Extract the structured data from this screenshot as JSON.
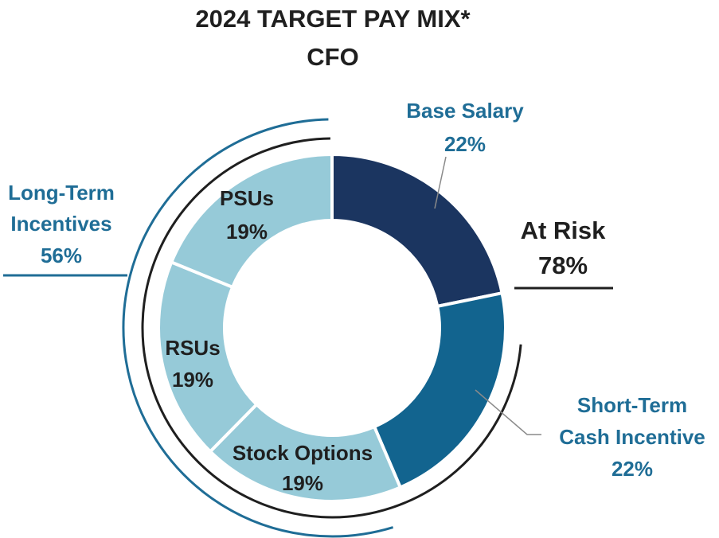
{
  "chart_data": {
    "type": "pie",
    "variant": "donut",
    "title": "2024 TARGET PAY MIX*",
    "subtitle": "CFO",
    "slices": [
      {
        "name": "Base Salary",
        "value": 22,
        "label": "22%",
        "color": "#1b3560"
      },
      {
        "name": "Short-Term Cash Incentive",
        "value": 22,
        "label": "22%",
        "color": "#12648f"
      },
      {
        "name": "Stock Options",
        "value": 19,
        "label": "19%",
        "color": "#96cad8"
      },
      {
        "name": "RSUs",
        "value": 19,
        "label": "19%",
        "color": "#96cad8"
      },
      {
        "name": "PSUs",
        "value": 19,
        "label": "19%",
        "color": "#96cad8"
      }
    ],
    "groups": [
      {
        "name": "At Risk",
        "value_label": "78%",
        "color": "#1f1f1f"
      },
      {
        "name": "Long-Term Incentives",
        "value_label": "56%",
        "color": "#1f6d96"
      }
    ],
    "labels": {
      "base_salary": "Base Salary",
      "base_salary_pct": "22%",
      "short_term_line1": "Short-Term",
      "short_term_line2": "Cash Incentive",
      "short_term_pct": "22%",
      "stock_options": "Stock Options",
      "stock_options_pct": "19%",
      "rsus": "RSUs",
      "rsus_pct": "19%",
      "psus": "PSUs",
      "psus_pct": "19%",
      "at_risk": "At Risk",
      "at_risk_pct": "78%",
      "lti_line1": "Long-Term",
      "lti_line2": "Incentives",
      "lti_pct": "56%"
    }
  }
}
